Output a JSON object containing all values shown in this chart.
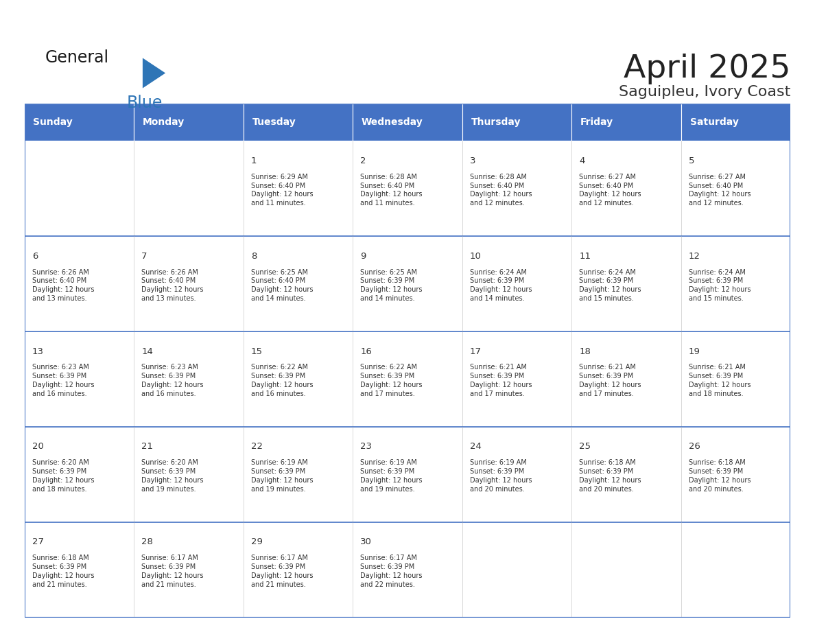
{
  "title": "April 2025",
  "subtitle": "Saguipleu, Ivory Coast",
  "days_of_week": [
    "Sunday",
    "Monday",
    "Tuesday",
    "Wednesday",
    "Thursday",
    "Friday",
    "Saturday"
  ],
  "header_bg": "#4472C4",
  "header_text": "#FFFFFF",
  "cell_bg": "#FFFFFF",
  "border_color": "#4472C4",
  "row_line_color": "#4472C4",
  "day_num_color": "#333333",
  "cell_text_color": "#333333",
  "title_color": "#222222",
  "subtitle_color": "#333333",
  "general_text_color": "#1a1a1a",
  "blue_color": "#2E75B6",
  "calendar_data": [
    [
      {
        "day": null,
        "sunrise": null,
        "sunset": null,
        "daylight": null
      },
      {
        "day": null,
        "sunrise": null,
        "sunset": null,
        "daylight": null
      },
      {
        "day": 1,
        "sunrise": "6:29 AM",
        "sunset": "6:40 PM",
        "daylight": "12 hours\nand 11 minutes."
      },
      {
        "day": 2,
        "sunrise": "6:28 AM",
        "sunset": "6:40 PM",
        "daylight": "12 hours\nand 11 minutes."
      },
      {
        "day": 3,
        "sunrise": "6:28 AM",
        "sunset": "6:40 PM",
        "daylight": "12 hours\nand 12 minutes."
      },
      {
        "day": 4,
        "sunrise": "6:27 AM",
        "sunset": "6:40 PM",
        "daylight": "12 hours\nand 12 minutes."
      },
      {
        "day": 5,
        "sunrise": "6:27 AM",
        "sunset": "6:40 PM",
        "daylight": "12 hours\nand 12 minutes."
      }
    ],
    [
      {
        "day": 6,
        "sunrise": "6:26 AM",
        "sunset": "6:40 PM",
        "daylight": "12 hours\nand 13 minutes."
      },
      {
        "day": 7,
        "sunrise": "6:26 AM",
        "sunset": "6:40 PM",
        "daylight": "12 hours\nand 13 minutes."
      },
      {
        "day": 8,
        "sunrise": "6:25 AM",
        "sunset": "6:40 PM",
        "daylight": "12 hours\nand 14 minutes."
      },
      {
        "day": 9,
        "sunrise": "6:25 AM",
        "sunset": "6:39 PM",
        "daylight": "12 hours\nand 14 minutes."
      },
      {
        "day": 10,
        "sunrise": "6:24 AM",
        "sunset": "6:39 PM",
        "daylight": "12 hours\nand 14 minutes."
      },
      {
        "day": 11,
        "sunrise": "6:24 AM",
        "sunset": "6:39 PM",
        "daylight": "12 hours\nand 15 minutes."
      },
      {
        "day": 12,
        "sunrise": "6:24 AM",
        "sunset": "6:39 PM",
        "daylight": "12 hours\nand 15 minutes."
      }
    ],
    [
      {
        "day": 13,
        "sunrise": "6:23 AM",
        "sunset": "6:39 PM",
        "daylight": "12 hours\nand 16 minutes."
      },
      {
        "day": 14,
        "sunrise": "6:23 AM",
        "sunset": "6:39 PM",
        "daylight": "12 hours\nand 16 minutes."
      },
      {
        "day": 15,
        "sunrise": "6:22 AM",
        "sunset": "6:39 PM",
        "daylight": "12 hours\nand 16 minutes."
      },
      {
        "day": 16,
        "sunrise": "6:22 AM",
        "sunset": "6:39 PM",
        "daylight": "12 hours\nand 17 minutes."
      },
      {
        "day": 17,
        "sunrise": "6:21 AM",
        "sunset": "6:39 PM",
        "daylight": "12 hours\nand 17 minutes."
      },
      {
        "day": 18,
        "sunrise": "6:21 AM",
        "sunset": "6:39 PM",
        "daylight": "12 hours\nand 17 minutes."
      },
      {
        "day": 19,
        "sunrise": "6:21 AM",
        "sunset": "6:39 PM",
        "daylight": "12 hours\nand 18 minutes."
      }
    ],
    [
      {
        "day": 20,
        "sunrise": "6:20 AM",
        "sunset": "6:39 PM",
        "daylight": "12 hours\nand 18 minutes."
      },
      {
        "day": 21,
        "sunrise": "6:20 AM",
        "sunset": "6:39 PM",
        "daylight": "12 hours\nand 19 minutes."
      },
      {
        "day": 22,
        "sunrise": "6:19 AM",
        "sunset": "6:39 PM",
        "daylight": "12 hours\nand 19 minutes."
      },
      {
        "day": 23,
        "sunrise": "6:19 AM",
        "sunset": "6:39 PM",
        "daylight": "12 hours\nand 19 minutes."
      },
      {
        "day": 24,
        "sunrise": "6:19 AM",
        "sunset": "6:39 PM",
        "daylight": "12 hours\nand 20 minutes."
      },
      {
        "day": 25,
        "sunrise": "6:18 AM",
        "sunset": "6:39 PM",
        "daylight": "12 hours\nand 20 minutes."
      },
      {
        "day": 26,
        "sunrise": "6:18 AM",
        "sunset": "6:39 PM",
        "daylight": "12 hours\nand 20 minutes."
      }
    ],
    [
      {
        "day": 27,
        "sunrise": "6:18 AM",
        "sunset": "6:39 PM",
        "daylight": "12 hours\nand 21 minutes."
      },
      {
        "day": 28,
        "sunrise": "6:17 AM",
        "sunset": "6:39 PM",
        "daylight": "12 hours\nand 21 minutes."
      },
      {
        "day": 29,
        "sunrise": "6:17 AM",
        "sunset": "6:39 PM",
        "daylight": "12 hours\nand 21 minutes."
      },
      {
        "day": 30,
        "sunrise": "6:17 AM",
        "sunset": "6:39 PM",
        "daylight": "12 hours\nand 22 minutes."
      },
      {
        "day": null,
        "sunrise": null,
        "sunset": null,
        "daylight": null
      },
      {
        "day": null,
        "sunrise": null,
        "sunset": null,
        "daylight": null
      },
      {
        "day": null,
        "sunrise": null,
        "sunset": null,
        "daylight": null
      }
    ]
  ],
  "figsize": [
    11.88,
    9.18
  ],
  "dpi": 100
}
